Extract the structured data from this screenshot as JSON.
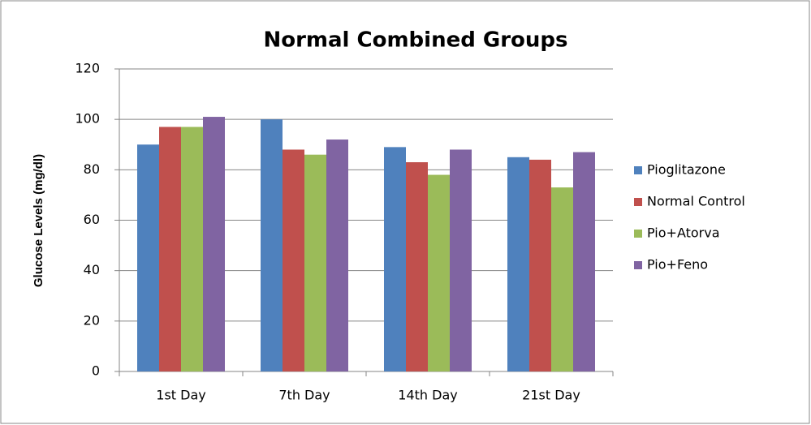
{
  "chart_data": {
    "type": "bar",
    "title": "Normal Combined Groups",
    "y_label": "Glucose Levels (mg/dl)",
    "categories": [
      "1st Day",
      "7th Day",
      "14th Day",
      "21st Day"
    ],
    "series": [
      {
        "name": "Pioglitazone",
        "color": "#4f81bd",
        "values": [
          90,
          100,
          89,
          85
        ]
      },
      {
        "name": "Normal Control",
        "color": "#c0504d",
        "values": [
          97,
          88,
          83,
          84
        ]
      },
      {
        "name": "Pio+Atorva",
        "color": "#9bbb59",
        "values": [
          97,
          86,
          78,
          73
        ]
      },
      {
        "name": "Pio+Feno",
        "color": "#8064a2",
        "values": [
          101,
          92,
          88,
          87
        ]
      }
    ],
    "ylim": [
      0,
      120
    ],
    "yticks": [
      0,
      20,
      40,
      60,
      80,
      100,
      120
    ],
    "grid": true,
    "legend": "right"
  }
}
